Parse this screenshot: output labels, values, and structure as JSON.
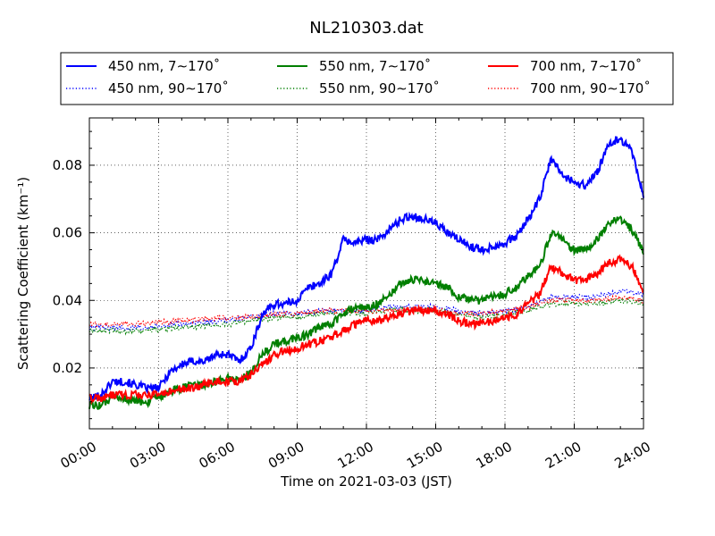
{
  "chart_data": {
    "type": "line",
    "title": "NL210303.dat",
    "xlabel": "Time on 2021-03-03 (JST)",
    "ylabel": "Scattering Coefficient (km⁻¹)",
    "xlim": [
      0,
      24
    ],
    "ylim": [
      0.002,
      0.094
    ],
    "xticks": [
      0,
      3,
      6,
      9,
      12,
      15,
      18,
      21,
      24
    ],
    "xtick_labels": [
      "00:00",
      "03:00",
      "06:00",
      "09:00",
      "12:00",
      "15:00",
      "18:00",
      "21:00",
      "24:00"
    ],
    "yticks": [
      0.02,
      0.04,
      0.06,
      0.08
    ],
    "ytick_labels": [
      "0.02",
      "0.04",
      "0.06",
      "0.08"
    ],
    "grid": true,
    "legend_position": "top, above plot",
    "series": [
      {
        "name": "450 nm, 7∼170˚",
        "color": "#0000ff",
        "style": "solid",
        "x": [
          0,
          0.5,
          1,
          1.5,
          2,
          2.5,
          3,
          3.5,
          4,
          4.5,
          5,
          5.5,
          6,
          6.5,
          7,
          7.5,
          8,
          8.5,
          9,
          9.5,
          10,
          10.5,
          11,
          11.5,
          12,
          12.5,
          13,
          13.5,
          14,
          14.5,
          15,
          15.5,
          16,
          16.5,
          17,
          17.5,
          18,
          18.5,
          19,
          19.5,
          20,
          20.5,
          21,
          21.5,
          22,
          22.5,
          23,
          23.5,
          24
        ],
        "y": [
          0.011,
          0.012,
          0.016,
          0.016,
          0.015,
          0.014,
          0.014,
          0.019,
          0.021,
          0.022,
          0.022,
          0.024,
          0.024,
          0.022,
          0.026,
          0.036,
          0.039,
          0.039,
          0.04,
          0.044,
          0.045,
          0.048,
          0.058,
          0.057,
          0.058,
          0.058,
          0.061,
          0.064,
          0.065,
          0.064,
          0.063,
          0.06,
          0.058,
          0.056,
          0.055,
          0.056,
          0.057,
          0.059,
          0.064,
          0.07,
          0.082,
          0.077,
          0.075,
          0.074,
          0.078,
          0.086,
          0.088,
          0.084,
          0.071
        ]
      },
      {
        "name": "450 nm, 90∼170˚",
        "color": "#0000ff",
        "style": "dotted",
        "x": [
          0,
          2,
          4,
          6,
          7,
          8,
          9,
          10,
          11,
          12,
          13,
          14,
          15,
          16,
          17,
          18,
          19,
          20,
          21,
          22,
          23,
          24
        ],
        "y": [
          0.032,
          0.032,
          0.033,
          0.034,
          0.035,
          0.036,
          0.036,
          0.037,
          0.037,
          0.037,
          0.038,
          0.038,
          0.038,
          0.037,
          0.036,
          0.037,
          0.038,
          0.041,
          0.041,
          0.041,
          0.043,
          0.042
        ]
      },
      {
        "name": "550 nm, 7∼170˚",
        "color": "#007f00",
        "style": "solid",
        "x": [
          0,
          0.5,
          1,
          1.5,
          2,
          2.5,
          3,
          3.5,
          4,
          4.5,
          5,
          5.5,
          6,
          6.5,
          7,
          7.5,
          8,
          8.5,
          9,
          9.5,
          10,
          10.5,
          11,
          11.5,
          12,
          12.5,
          13,
          13.5,
          14,
          14.5,
          15,
          15.5,
          16,
          16.5,
          17,
          17.5,
          18,
          18.5,
          19,
          19.5,
          20,
          20.5,
          21,
          21.5,
          22,
          22.5,
          23,
          23.5,
          24
        ],
        "y": [
          0.009,
          0.009,
          0.011,
          0.011,
          0.01,
          0.01,
          0.011,
          0.013,
          0.014,
          0.015,
          0.015,
          0.016,
          0.017,
          0.016,
          0.019,
          0.024,
          0.027,
          0.028,
          0.029,
          0.03,
          0.032,
          0.033,
          0.036,
          0.038,
          0.038,
          0.039,
          0.042,
          0.045,
          0.046,
          0.046,
          0.045,
          0.044,
          0.041,
          0.04,
          0.04,
          0.041,
          0.042,
          0.044,
          0.047,
          0.05,
          0.06,
          0.058,
          0.055,
          0.055,
          0.058,
          0.063,
          0.064,
          0.061,
          0.054
        ]
      },
      {
        "name": "550 nm, 90∼170˚",
        "color": "#007f00",
        "style": "dotted",
        "x": [
          0,
          2,
          4,
          6,
          7,
          8,
          9,
          10,
          11,
          12,
          13,
          14,
          15,
          16,
          17,
          18,
          19,
          20,
          21,
          22,
          23,
          24
        ],
        "y": [
          0.031,
          0.031,
          0.032,
          0.033,
          0.034,
          0.035,
          0.035,
          0.036,
          0.036,
          0.036,
          0.037,
          0.037,
          0.037,
          0.036,
          0.035,
          0.036,
          0.037,
          0.039,
          0.039,
          0.039,
          0.04,
          0.039
        ]
      },
      {
        "name": "700 nm, 7∼170˚",
        "color": "#ff0000",
        "style": "solid",
        "x": [
          0,
          0.5,
          1,
          1.5,
          2,
          2.5,
          3,
          3.5,
          4,
          4.5,
          5,
          5.5,
          6,
          6.5,
          7,
          7.5,
          8,
          8.5,
          9,
          9.5,
          10,
          10.5,
          11,
          11.5,
          12,
          12.5,
          13,
          13.5,
          14,
          14.5,
          15,
          15.5,
          16,
          16.5,
          17,
          17.5,
          18,
          18.5,
          19,
          19.5,
          20,
          20.5,
          21,
          21.5,
          22,
          22.5,
          23,
          23.5,
          24
        ],
        "y": [
          0.011,
          0.011,
          0.012,
          0.012,
          0.012,
          0.012,
          0.012,
          0.013,
          0.014,
          0.014,
          0.015,
          0.016,
          0.016,
          0.016,
          0.018,
          0.021,
          0.024,
          0.025,
          0.026,
          0.027,
          0.028,
          0.029,
          0.031,
          0.033,
          0.034,
          0.034,
          0.035,
          0.036,
          0.037,
          0.037,
          0.037,
          0.036,
          0.034,
          0.033,
          0.033,
          0.034,
          0.035,
          0.036,
          0.039,
          0.042,
          0.05,
          0.048,
          0.046,
          0.046,
          0.048,
          0.051,
          0.052,
          0.05,
          0.043
        ]
      },
      {
        "name": "700 nm, 90∼170˚",
        "color": "#ff0000",
        "style": "dotted",
        "x": [
          0,
          2,
          4,
          6,
          7,
          8,
          9,
          10,
          11,
          12,
          13,
          14,
          15,
          16,
          17,
          18,
          19,
          20,
          21,
          22,
          23,
          24
        ],
        "y": [
          0.033,
          0.033,
          0.034,
          0.035,
          0.035,
          0.036,
          0.036,
          0.037,
          0.037,
          0.037,
          0.037,
          0.037,
          0.037,
          0.036,
          0.036,
          0.037,
          0.038,
          0.04,
          0.04,
          0.04,
          0.041,
          0.04
        ]
      }
    ]
  }
}
